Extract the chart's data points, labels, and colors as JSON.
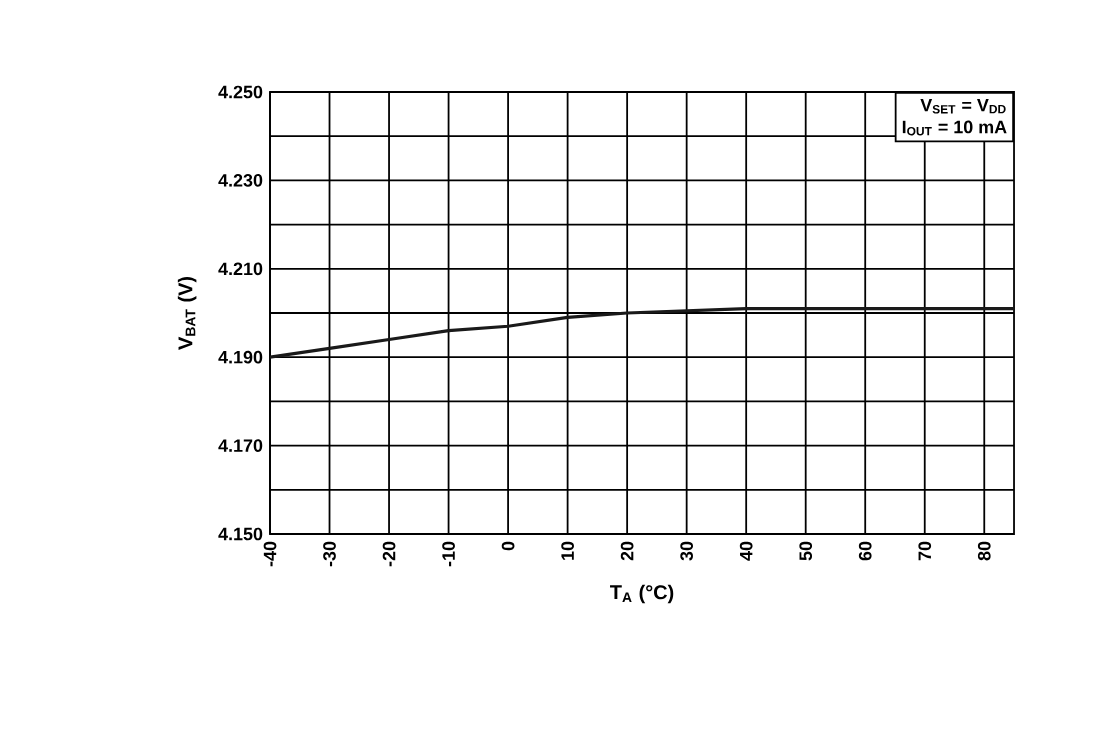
{
  "chart_data": {
    "type": "line",
    "xlabel": "T$_{A}$ (°C)",
    "ylabel": "V$_{BAT}$ (V)",
    "x": [
      -40,
      -30,
      -20,
      -10,
      0,
      10,
      20,
      30,
      40,
      50,
      60,
      70,
      80,
      85
    ],
    "series": [
      {
        "color": "#1a1a1a",
        "values": [
          4.19,
          4.192,
          4.194,
          4.196,
          4.197,
          4.199,
          4.2,
          4.2005,
          4.201,
          4.201,
          4.201,
          4.201,
          4.201,
          4.201
        ]
      }
    ],
    "xlim": [
      -40,
      85
    ],
    "xticks": [
      -40,
      -30,
      -20,
      -10,
      0,
      10,
      20,
      30,
      40,
      50,
      60,
      70,
      80
    ],
    "ylim": [
      4.15,
      4.25
    ],
    "yticks": [
      {
        "value": 4.15,
        "label": "4.150"
      },
      {
        "value": 4.16,
        "label": null
      },
      {
        "value": 4.17,
        "label": "4.170"
      },
      {
        "value": 4.18,
        "label": null
      },
      {
        "value": 4.19,
        "label": "4.190"
      },
      {
        "value": 4.2,
        "label": null
      },
      {
        "value": 4.21,
        "label": "4.210"
      },
      {
        "value": 4.22,
        "label": null
      },
      {
        "value": 4.23,
        "label": "4.230"
      },
      {
        "value": 4.24,
        "label": null
      },
      {
        "value": 4.25,
        "label": "4.250"
      }
    ],
    "grid": true,
    "marker": "none",
    "line_style": "solid",
    "annotations": [
      "V$_{SET}$ = V$_{DD}$",
      "I$_{OUT}$ = 10 mA"
    ]
  }
}
